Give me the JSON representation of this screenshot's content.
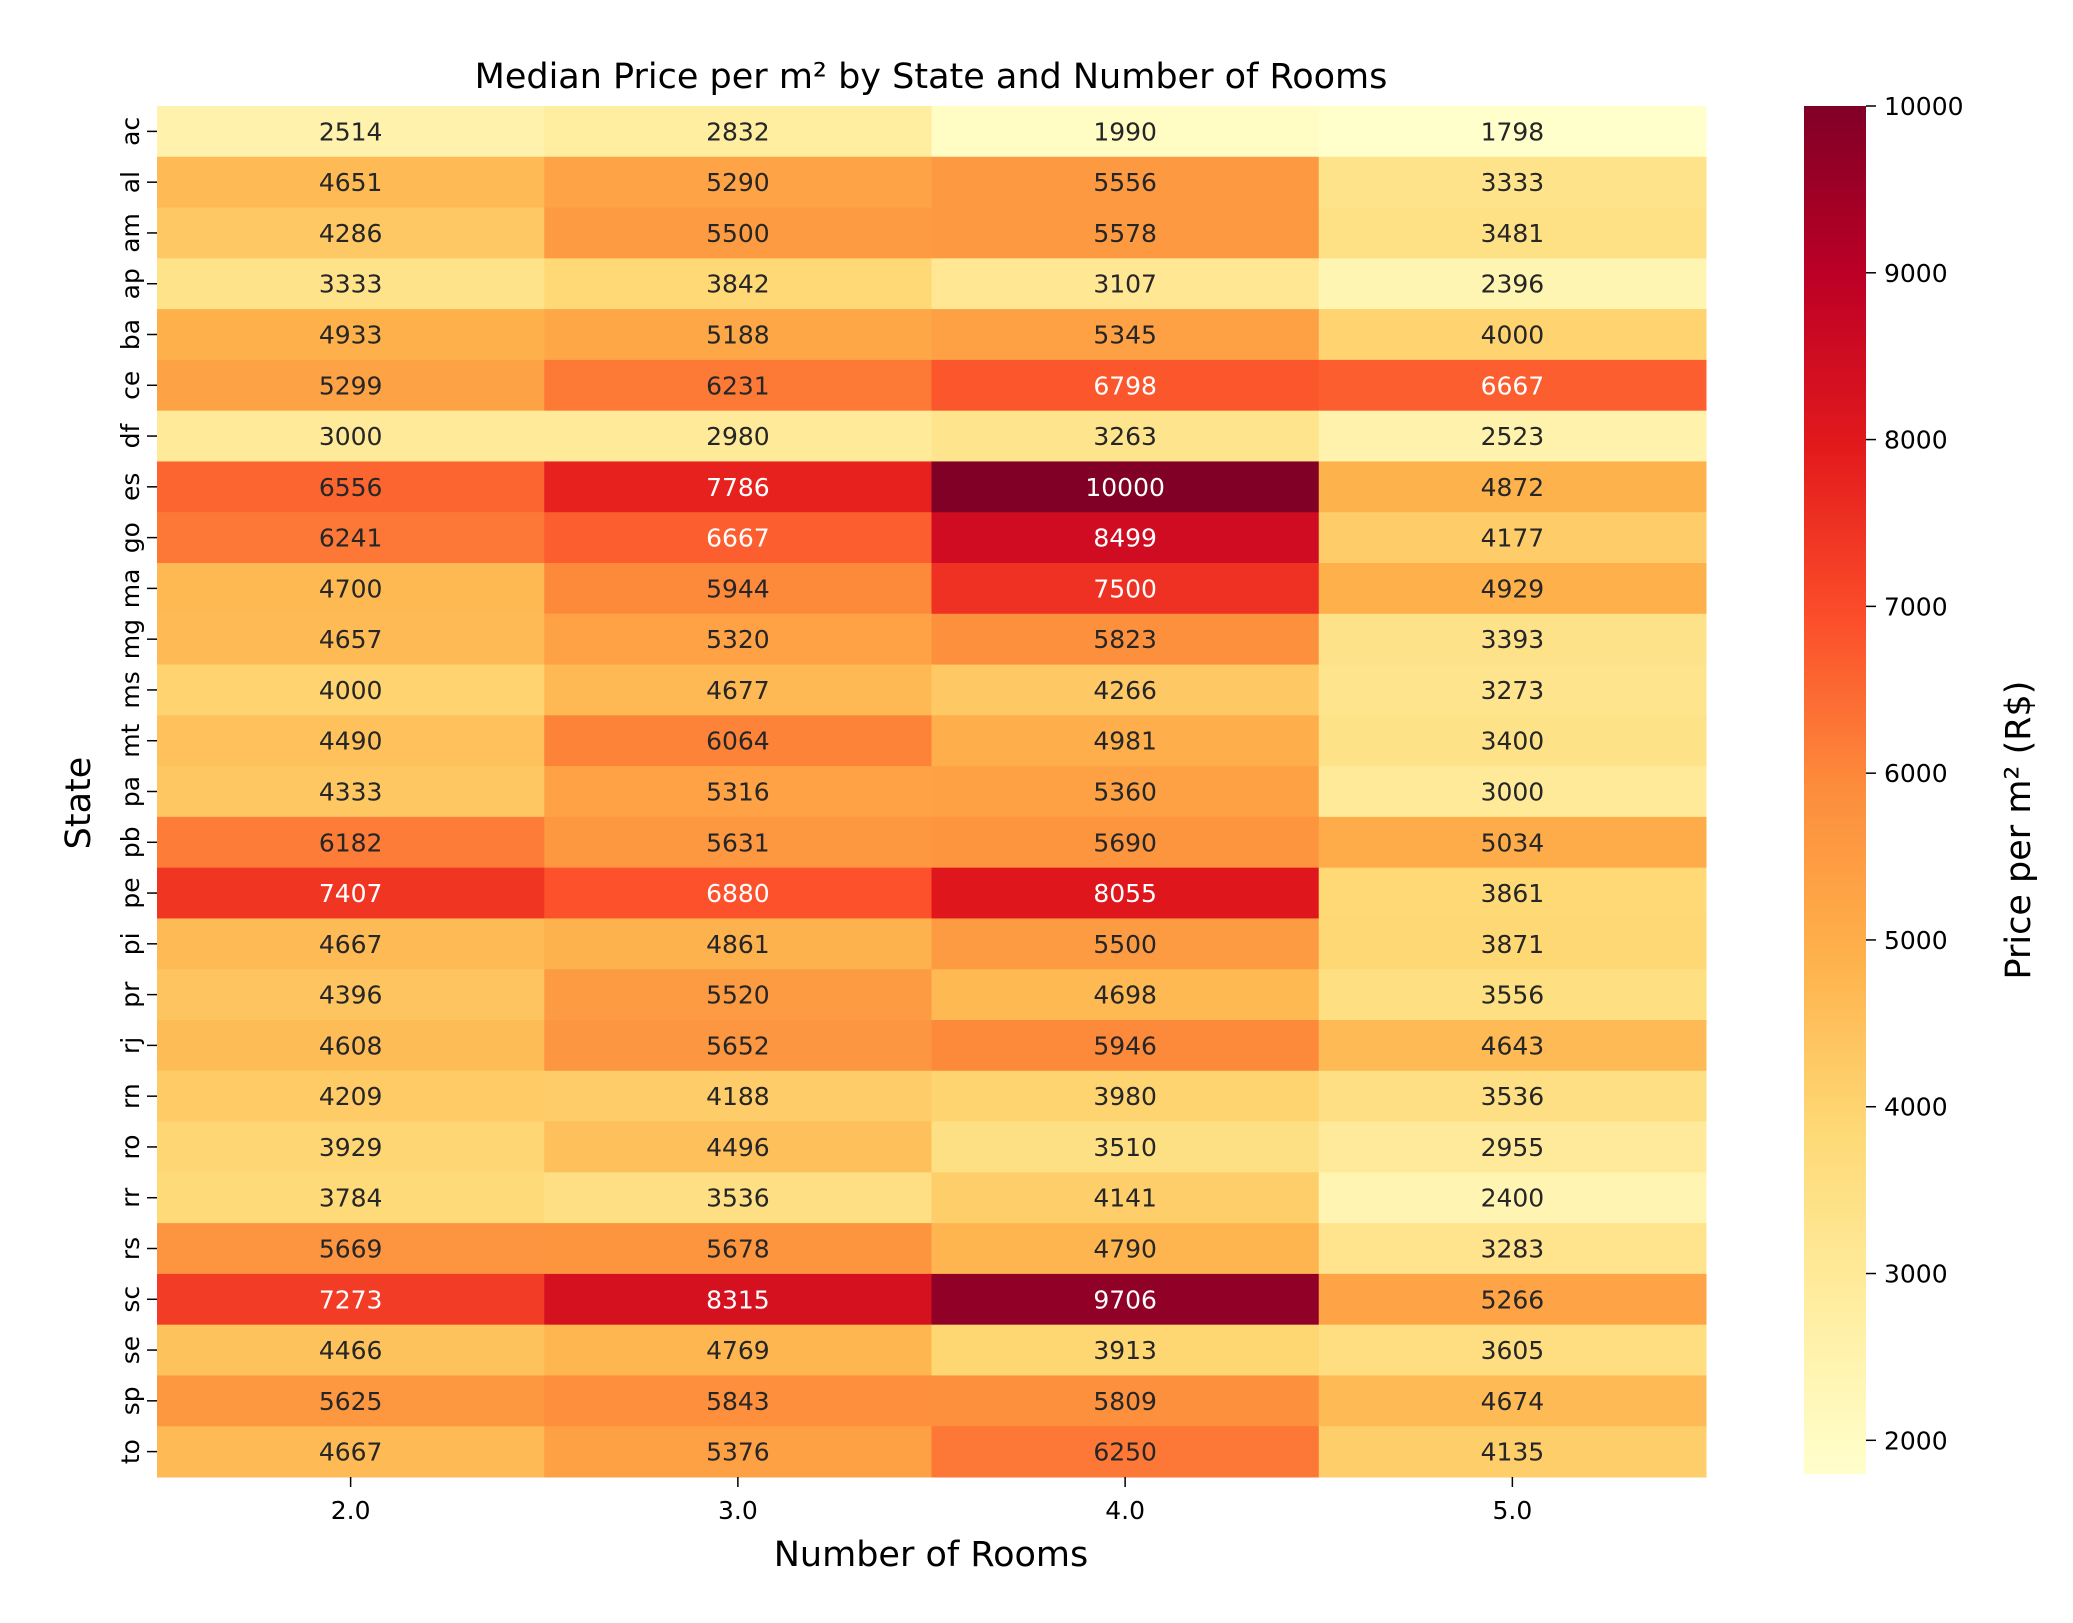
{
  "chart_data": {
    "type": "heatmap",
    "title": "Median Price per m² by State and Number of Rooms",
    "xlabel": "Number of Rooms",
    "ylabel": "State",
    "colorbar_label": "Price per m² (R$)",
    "colormap": "YlOrRd",
    "colorbar_range": [
      1798,
      10000
    ],
    "colorbar_ticks": [
      "2000",
      "3000",
      "4000",
      "5000",
      "6000",
      "7000",
      "8000",
      "9000",
      "10000"
    ],
    "columns": [
      "2.0",
      "3.0",
      "4.0",
      "5.0"
    ],
    "rows": [
      "ac",
      "al",
      "am",
      "ap",
      "ba",
      "ce",
      "df",
      "es",
      "go",
      "ma",
      "mg",
      "ms",
      "mt",
      "pa",
      "pb",
      "pe",
      "pi",
      "pr",
      "rj",
      "rn",
      "ro",
      "rr",
      "rs",
      "sc",
      "se",
      "sp",
      "to"
    ],
    "values": [
      [
        2514,
        2832,
        1990,
        1798
      ],
      [
        4651,
        5290,
        5556,
        3333
      ],
      [
        4286,
        5500,
        5578,
        3481
      ],
      [
        3333,
        3842,
        3107,
        2396
      ],
      [
        4933,
        5188,
        5345,
        4000
      ],
      [
        5299,
        6231,
        6798,
        6667
      ],
      [
        3000,
        2980,
        3263,
        2523
      ],
      [
        6556,
        7786,
        10000,
        4872
      ],
      [
        6241,
        6667,
        8499,
        4177
      ],
      [
        4700,
        5944,
        7500,
        4929
      ],
      [
        4657,
        5320,
        5823,
        3393
      ],
      [
        4000,
        4677,
        4266,
        3273
      ],
      [
        4490,
        6064,
        4981,
        3400
      ],
      [
        4333,
        5316,
        5360,
        3000
      ],
      [
        6182,
        5631,
        5690,
        5034
      ],
      [
        7407,
        6880,
        8055,
        3861
      ],
      [
        4667,
        4861,
        5500,
        3871
      ],
      [
        4396,
        5520,
        4698,
        3556
      ],
      [
        4608,
        5652,
        5946,
        4643
      ],
      [
        4209,
        4188,
        3980,
        3536
      ],
      [
        3929,
        4496,
        3510,
        2955
      ],
      [
        3784,
        3536,
        4141,
        2400
      ],
      [
        5669,
        5678,
        4790,
        3283
      ],
      [
        7273,
        8315,
        9706,
        5266
      ],
      [
        4466,
        4769,
        3913,
        3605
      ],
      [
        5625,
        5843,
        5809,
        4674
      ],
      [
        4667,
        5376,
        6250,
        4135
      ]
    ]
  }
}
